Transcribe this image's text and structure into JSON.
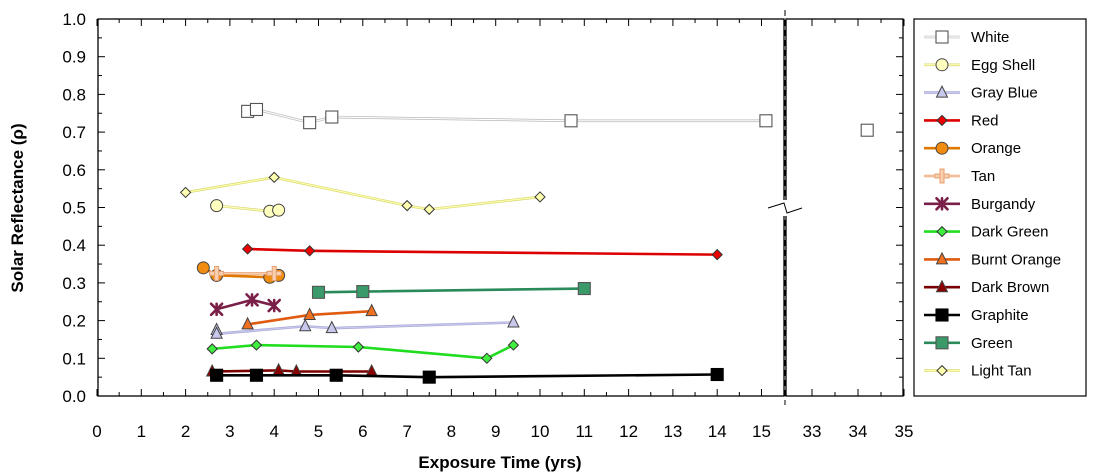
{
  "chart_data": {
    "type": "line",
    "xlabel": "Exposure Time (yrs)",
    "ylabel": "Solar Reflectance (ρ)",
    "ylim": [
      0,
      1.0
    ],
    "yticks": [
      "0.0",
      "0.1",
      "0.2",
      "0.3",
      "0.4",
      "0.5",
      "0.6",
      "0.7",
      "0.8",
      "0.9",
      "1.0"
    ],
    "x_segments": [
      {
        "xlim": [
          0,
          15.5
        ],
        "ticks": [
          "0",
          "1",
          "2",
          "3",
          "4",
          "5",
          "6",
          "7",
          "8",
          "9",
          "10",
          "11",
          "12",
          "13",
          "14",
          "15"
        ]
      },
      {
        "xlim": [
          32.5,
          35
        ],
        "ticks": [
          "33",
          "34",
          "35"
        ]
      }
    ],
    "grid": false,
    "legend_position": "right",
    "series": [
      {
        "name": "White",
        "marker": "square",
        "color": "#b8b8b8",
        "fill": "#ffffff",
        "x": [
          3.4,
          3.6,
          4.8,
          5.3,
          10.7,
          15.1,
          34.2
        ],
        "y": [
          0.755,
          0.76,
          0.725,
          0.74,
          0.73,
          0.73,
          0.705
        ]
      },
      {
        "name": "Egg Shell",
        "marker": "circle",
        "color": "#d8d870",
        "fill": "#ffffc0",
        "x": [
          2.7,
          3.9,
          4.1
        ],
        "y": [
          0.505,
          0.49,
          0.493
        ]
      },
      {
        "name": "Gray Blue",
        "marker": "triangle",
        "color": "#a8a8d8",
        "fill": "#c8c8ec",
        "x": [
          2.7,
          2.7,
          4.7,
          5.3,
          9.4
        ],
        "y": [
          0.175,
          0.165,
          0.185,
          0.18,
          0.195
        ]
      },
      {
        "name": "Red",
        "marker": "diamond",
        "color": "#dd0000",
        "fill": "#ee0000",
        "x": [
          3.4,
          4.8,
          14.0
        ],
        "y": [
          0.39,
          0.385,
          0.375
        ]
      },
      {
        "name": "Orange",
        "marker": "circle",
        "color": "#e07800",
        "fill": "#f08c10",
        "x": [
          2.4,
          2.7,
          3.9,
          4.1
        ],
        "y": [
          0.34,
          0.32,
          0.315,
          0.32
        ]
      },
      {
        "name": "Tan",
        "marker": "plus",
        "color": "#e8a070",
        "fill": "#f8d0b0",
        "x": [
          2.7,
          4.0
        ],
        "y": [
          0.325,
          0.325
        ]
      },
      {
        "name": "Burgandy",
        "marker": "asterisk",
        "color": "#7a2048",
        "fill": "#7a2048",
        "x": [
          2.7,
          3.5,
          4.0
        ],
        "y": [
          0.23,
          0.255,
          0.24
        ]
      },
      {
        "name": "Dark Green",
        "marker": "diamond",
        "color": "#20dd20",
        "fill": "#40ee40",
        "x": [
          2.6,
          3.6,
          5.9,
          8.8,
          9.4
        ],
        "y": [
          0.125,
          0.135,
          0.13,
          0.1,
          0.135
        ]
      },
      {
        "name": "Burnt Orange",
        "marker": "triangle",
        "color": "#e05a10",
        "fill": "#f07020",
        "x": [
          3.4,
          4.8,
          6.2
        ],
        "y": [
          0.19,
          0.215,
          0.225
        ]
      },
      {
        "name": "Dark Brown",
        "marker": "triangle",
        "color": "#7a0000",
        "fill": "#8a0000",
        "x": [
          2.6,
          4.1,
          4.5,
          6.2
        ],
        "y": [
          0.065,
          0.068,
          0.065,
          0.065
        ]
      },
      {
        "name": "Graphite",
        "marker": "square",
        "color": "#000000",
        "fill": "#000000",
        "x": [
          2.7,
          3.6,
          5.4,
          7.5,
          14.0
        ],
        "y": [
          0.055,
          0.055,
          0.055,
          0.05,
          0.057
        ]
      },
      {
        "name": "Green",
        "marker": "square",
        "color": "#2a8a5a",
        "fill": "#3a9a6a",
        "x": [
          5.0,
          6.0,
          11.0
        ],
        "y": [
          0.275,
          0.277,
          0.285
        ]
      },
      {
        "name": "Light Tan",
        "marker": "diamond",
        "color": "#d8d870",
        "fill": "#ffffb0",
        "x": [
          2.0,
          4.0,
          7.0,
          7.5,
          10.0
        ],
        "y": [
          0.54,
          0.58,
          0.505,
          0.495,
          0.528
        ]
      }
    ]
  }
}
